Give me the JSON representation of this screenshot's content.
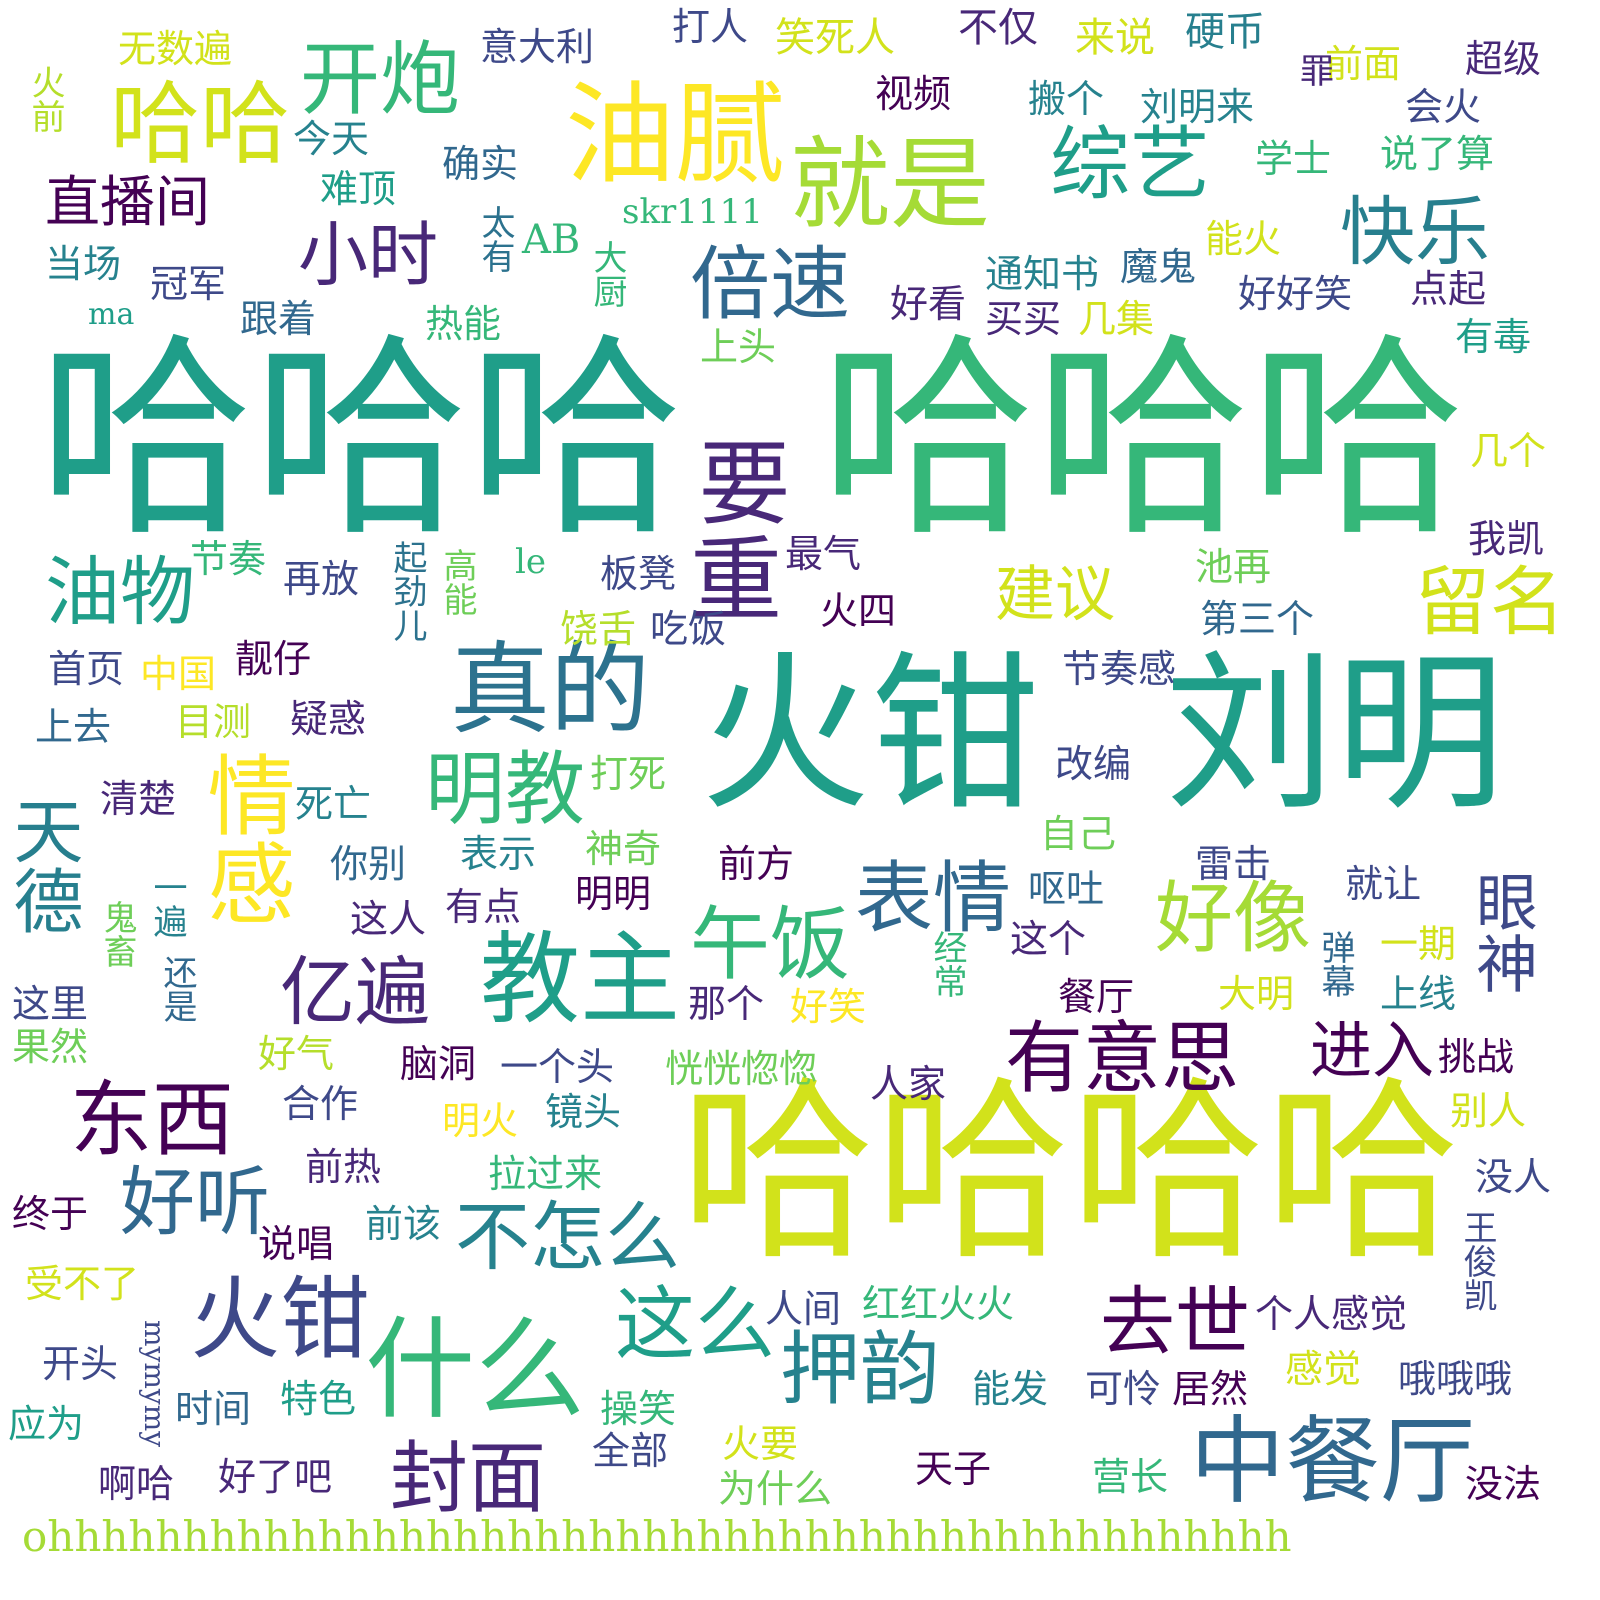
{
  "palette": {
    "dark_purple": "#440154",
    "purple": "#482878",
    "indigo": "#3e4989",
    "blue": "#31688e",
    "steel": "#26828e",
    "teal": "#1f9e89",
    "green": "#35b779",
    "light_green": "#6ece58",
    "lime": "#b5de2b",
    "yellow": "#fde725"
  },
  "words": [
    "哈哈哈",
    "哈哈哈",
    "火钳",
    "刘明",
    "哈哈哈哈",
    "油腻",
    "就是",
    "哈哈",
    "开炮",
    "综艺",
    "快乐",
    "倍速",
    "小时",
    "直播间",
    "要",
    "重",
    "真的",
    "留名",
    "油物",
    "建议",
    "明教",
    "情感",
    "天德",
    "表情",
    "好像",
    "教主",
    "亿遍",
    "午饭",
    "眼神",
    "有意思",
    "进入",
    "东西",
    "好听",
    "火钳",
    "什么",
    "不怎么",
    "这么",
    "押韵",
    "去世",
    "中餐厅",
    "封面",
    "ohhhhhhhhhhhhhhhhhhhhhhhhhhhhhhhhhhhhhhhhhhhhhh",
    "无数遍",
    "意大利",
    "打人",
    "笑死人",
    "不仅",
    "来说",
    "硬币",
    "超级",
    "前面",
    "火前",
    "视频",
    "搬个",
    "刘明来",
    "会火",
    "今天",
    "确实",
    "学士",
    "说了算",
    "难顶",
    "skr1111",
    "AB",
    "能火",
    "当场",
    "冠军",
    "ma",
    "跟着",
    "热能",
    "通知书",
    "魔鬼",
    "好看",
    "买买",
    "几集",
    "好好笑",
    "点起",
    "有毒",
    "上头",
    "太有",
    "大厨",
    "几个",
    "我凯",
    "节奏",
    "再放",
    "起劲儿",
    "高能",
    "le",
    "板凳",
    "最气",
    "池再",
    "饶舌",
    "吃饭",
    "火四",
    "第三个",
    "首页",
    "中国",
    "靓仔",
    "节奏感",
    "上去",
    "目测",
    "疑惑",
    "清楚",
    "打死",
    "死亡",
    "改编",
    "自己",
    "神奇",
    "表示",
    "你别",
    "前方",
    "雷击",
    "就让",
    "明明",
    "有点",
    "这人",
    "呕吐",
    "一遍",
    "这个",
    "一期",
    "鬼畜",
    "经常",
    "弹幕",
    "这里",
    "还是",
    "那个",
    "好笑",
    "餐厅",
    "大明",
    "上线",
    "果然",
    "好气",
    "脑洞",
    "一个头",
    "恍恍惚惚",
    "挑战",
    "人家",
    "合作",
    "镜头",
    "明火",
    "别人",
    "前热",
    "拉过来",
    "没人",
    "终于",
    "前该",
    "说唱",
    "王俊凯",
    "受不了",
    "人间",
    "红红火火",
    "个人感觉",
    "开头",
    "mymymy",
    "能发",
    "可怜",
    "居然",
    "感觉",
    "哦哦哦",
    "应为",
    "时间",
    "特色",
    "操笑",
    "火要",
    "全部",
    "啊哈",
    "好了吧",
    "天子",
    "营长",
    "为什么",
    "没法",
    "罪"
  ]
}
